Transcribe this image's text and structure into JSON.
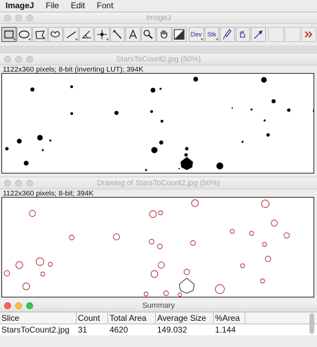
{
  "menu": {
    "app": "ImageJ",
    "items": [
      "File",
      "Edit",
      "Font"
    ]
  },
  "toolbar": {
    "title": "ImageJ",
    "tools": [
      {
        "icon": "rectangle-tool-icon",
        "selected": true
      },
      {
        "icon": "oval-tool-icon"
      },
      {
        "icon": "polygon-tool-icon"
      },
      {
        "icon": "freehand-tool-icon"
      },
      {
        "icon": "line-tool-icon"
      },
      {
        "icon": "angle-tool-icon"
      },
      {
        "icon": "point-tool-icon"
      },
      {
        "icon": "wand-tool-icon"
      },
      {
        "icon": "text-tool-icon"
      },
      {
        "icon": "magnifier-tool-icon"
      },
      {
        "icon": "hand-tool-icon"
      },
      {
        "icon": "color-picker-tool-icon"
      },
      {
        "icon": "dev-menu",
        "label": "Dev"
      },
      {
        "icon": "stk-menu",
        "label": "Stk"
      },
      {
        "icon": "brush-tool-icon"
      },
      {
        "icon": "flood-fill-tool-icon"
      },
      {
        "icon": "arrow-tool-icon"
      }
    ],
    "more_icon": "double-chevron-right-icon"
  },
  "image1": {
    "title": "StarsToCount2.jpg (50%)",
    "info": "1122x360 pixels; 8-bit (inverting LUT); 394K"
  },
  "image2": {
    "title": "Drawing of StarsToCount2.jpg (50%)",
    "info": "1122x360 pixels; 8-bit; 394K"
  },
  "summary": {
    "title": "Summary",
    "columns": [
      "Slice",
      "Count",
      "Total Area",
      "Average Size",
      "%Area"
    ],
    "rows": [
      [
        "StarsToCount2.jpg",
        "31",
        "4620",
        "149.032",
        "1.144"
      ]
    ]
  },
  "colors": {
    "outline": "#b0202a",
    "star": "#000000",
    "accent": "#c02020"
  }
}
